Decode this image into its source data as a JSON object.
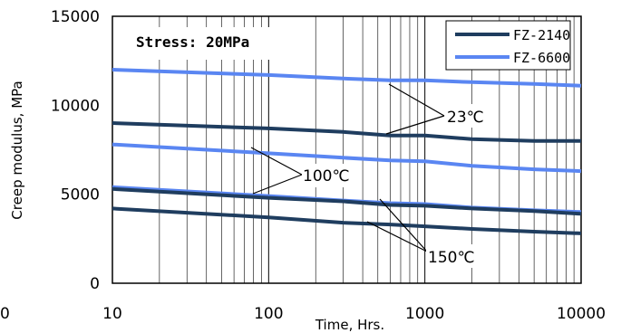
{
  "chart_data": {
    "type": "line",
    "xlabel": "Time, Hrs.",
    "ylabel": "Creep modulus, MPa",
    "xscale": "log",
    "xlim": [
      10,
      10000
    ],
    "ylim": [
      0,
      15000
    ],
    "x_tick_labels": [
      "10",
      "100",
      "1000",
      "10000"
    ],
    "y_tick_labels": [
      "0",
      "5000",
      "10000",
      "15000"
    ],
    "stray_tick_label": "0",
    "grid": "vertical lines at log decades and minor subdivisions",
    "legend_placement": "top-right",
    "annotations": {
      "stress": "Stress: 20MPa",
      "t23": "23℃",
      "t100": "100℃",
      "t150": "150℃"
    },
    "series": [
      {
        "name": "FZ-2140",
        "color": "#1f3d5f",
        "temperature": "23℃",
        "x": [
          10,
          100,
          300,
          600,
          1000,
          2000,
          5000,
          10000
        ],
        "y": [
          9000,
          8700,
          8500,
          8300,
          8300,
          8100,
          8000,
          8000
        ]
      },
      {
        "name": "FZ-6600",
        "color": "#5a86f2",
        "temperature": "23℃",
        "x": [
          10,
          100,
          300,
          600,
          1000,
          2000,
          5000,
          10000
        ],
        "y": [
          12000,
          11700,
          11500,
          11400,
          11400,
          11300,
          11200,
          11100
        ]
      },
      {
        "name": "FZ-6600",
        "color": "#5a86f2",
        "temperature": "100℃",
        "x": [
          10,
          100,
          300,
          600,
          1000,
          2000,
          5000,
          10000
        ],
        "y": [
          7800,
          7300,
          7050,
          6900,
          6850,
          6600,
          6400,
          6300
        ]
      },
      {
        "name": "FZ-6600",
        "color": "#5a86f2",
        "temperature": "150℃",
        "x": [
          10,
          100,
          300,
          600,
          1000,
          2000,
          5000,
          10000
        ],
        "y": [
          5400,
          4900,
          4650,
          4500,
          4450,
          4250,
          4100,
          4000
        ]
      },
      {
        "name": "FZ-2140",
        "color": "#1f3d5f",
        "temperature": "100℃",
        "x": [
          10,
          100,
          300,
          600,
          1000,
          2000,
          5000,
          10000
        ],
        "y": [
          5300,
          4800,
          4600,
          4400,
          4350,
          4200,
          4050,
          3900
        ]
      },
      {
        "name": "FZ-2140",
        "color": "#1f3d5f",
        "temperature": "150℃",
        "x": [
          10,
          100,
          300,
          600,
          1000,
          2000,
          5000,
          10000
        ],
        "y": [
          4200,
          3700,
          3400,
          3300,
          3200,
          3050,
          2900,
          2800
        ]
      }
    ],
    "legend": [
      {
        "label": "FZ-2140",
        "color": "#1f3d5f"
      },
      {
        "label": "FZ-6600",
        "color": "#5a86f2"
      }
    ]
  }
}
